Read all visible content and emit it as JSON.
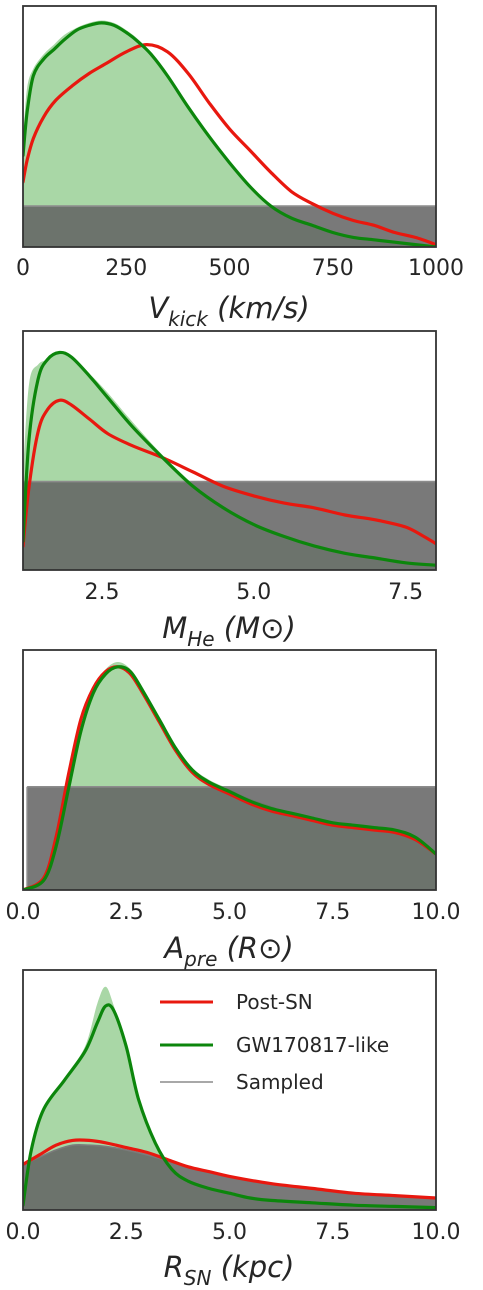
{
  "chart_data": [
    {
      "type": "area",
      "xlabel": {
        "main": "V",
        "sub": "kick",
        "rest": " (km/s)"
      },
      "xlim": [
        0,
        1000
      ],
      "xticks": [
        0,
        250,
        500,
        750,
        1000
      ],
      "ylim": [
        0,
        1.0
      ],
      "sampled_level": 0.17,
      "series": [
        {
          "name": "Post-SN",
          "color": "#e8180f",
          "x": [
            0,
            10,
            25,
            50,
            80,
            120,
            160,
            200,
            250,
            300,
            350,
            400,
            450,
            500,
            550,
            600,
            650,
            700,
            750,
            800,
            850,
            900,
            950,
            1000
          ],
          "y": [
            0.27,
            0.36,
            0.45,
            0.54,
            0.61,
            0.67,
            0.72,
            0.76,
            0.81,
            0.84,
            0.81,
            0.72,
            0.6,
            0.49,
            0.4,
            0.31,
            0.23,
            0.18,
            0.14,
            0.11,
            0.09,
            0.06,
            0.04,
            0.01
          ]
        },
        {
          "name": "GW170817-like",
          "color": "#0c860c",
          "x": [
            0,
            10,
            25,
            50,
            75,
            100,
            130,
            160,
            190,
            220,
            250,
            280,
            310,
            350,
            400,
            450,
            500,
            550,
            600,
            650,
            700,
            750,
            800,
            850,
            900,
            950,
            1000
          ],
          "y": [
            0.38,
            0.56,
            0.71,
            0.78,
            0.82,
            0.86,
            0.9,
            0.92,
            0.93,
            0.92,
            0.89,
            0.85,
            0.8,
            0.71,
            0.58,
            0.46,
            0.35,
            0.25,
            0.17,
            0.12,
            0.09,
            0.06,
            0.04,
            0.03,
            0.02,
            0.01,
            0.0
          ]
        }
      ],
      "histogram": {
        "name": "GW170817-like",
        "color": "#a9d7a6",
        "x": [
          0,
          10,
          25,
          50,
          75,
          100,
          130,
          160,
          190,
          220,
          250,
          280,
          310,
          350,
          400,
          450,
          500,
          550,
          600,
          650,
          700,
          750,
          800,
          850,
          900,
          950,
          1000
        ],
        "y": [
          0.45,
          0.66,
          0.74,
          0.8,
          0.84,
          0.88,
          0.91,
          0.93,
          0.94,
          0.93,
          0.9,
          0.86,
          0.8,
          0.71,
          0.58,
          0.46,
          0.35,
          0.25,
          0.17,
          0.12,
          0.09,
          0.06,
          0.04,
          0.03,
          0.02,
          0.01,
          0.0
        ]
      }
    },
    {
      "type": "area",
      "xlabel": {
        "main": "M",
        "sub": "He",
        "rest": " (M⊙)"
      },
      "xlim": [
        1.2,
        8.0
      ],
      "xticks": [
        2.5,
        5.0,
        7.5
      ],
      "ylim": [
        0,
        1.0
      ],
      "sampled_level": 0.37,
      "series": [
        {
          "name": "Post-SN",
          "color": "#e8180f",
          "x": [
            1.2,
            1.3,
            1.45,
            1.6,
            1.8,
            2.0,
            2.3,
            2.6,
            3.0,
            3.5,
            4.0,
            4.5,
            5.0,
            5.5,
            6.0,
            6.5,
            7.0,
            7.5,
            7.8,
            8.0
          ],
          "y": [
            0.1,
            0.35,
            0.58,
            0.67,
            0.71,
            0.69,
            0.63,
            0.57,
            0.52,
            0.47,
            0.41,
            0.35,
            0.31,
            0.28,
            0.26,
            0.23,
            0.21,
            0.18,
            0.14,
            0.11
          ]
        },
        {
          "name": "GW170817-like",
          "color": "#0c860c",
          "x": [
            1.2,
            1.3,
            1.45,
            1.6,
            1.8,
            2.0,
            2.3,
            2.6,
            3.0,
            3.5,
            4.0,
            4.5,
            5.0,
            5.5,
            6.0,
            6.5,
            7.0,
            7.5,
            8.0
          ],
          "y": [
            0.12,
            0.55,
            0.8,
            0.88,
            0.91,
            0.89,
            0.81,
            0.72,
            0.6,
            0.47,
            0.35,
            0.26,
            0.19,
            0.14,
            0.1,
            0.07,
            0.05,
            0.03,
            0.02
          ]
        }
      ],
      "histogram": {
        "name": "GW170817-like",
        "color": "#a9d7a6",
        "x": [
          1.2,
          1.3,
          1.45,
          1.6,
          1.8,
          2.0,
          2.3,
          2.6,
          3.0,
          3.5,
          4.0,
          4.5,
          5.0,
          5.5,
          6.0,
          6.5,
          7.0,
          7.5,
          8.0
        ],
        "y": [
          0.4,
          0.78,
          0.86,
          0.88,
          0.91,
          0.89,
          0.82,
          0.74,
          0.62,
          0.48,
          0.36,
          0.26,
          0.19,
          0.14,
          0.1,
          0.07,
          0.05,
          0.03,
          0.02
        ]
      }
    },
    {
      "type": "area",
      "xlabel": {
        "main": "A",
        "sub": "pre",
        "rest": " (R⊙)"
      },
      "xlim": [
        0,
        10
      ],
      "xticks": [
        0.0,
        2.5,
        5.0,
        7.5,
        10.0
      ],
      "ylim": [
        0,
        1.0
      ],
      "sampled_level": 0.43,
      "sampled_xmin": 0.1,
      "series": [
        {
          "name": "Post-SN",
          "color": "#e8180f",
          "x": [
            0,
            0.5,
            0.8,
            1.1,
            1.4,
            1.7,
            2.0,
            2.3,
            2.6,
            2.9,
            3.3,
            3.7,
            4.1,
            4.5,
            5.0,
            5.5,
            6.0,
            6.5,
            7.0,
            7.5,
            8.0,
            8.5,
            9.0,
            9.5,
            10.0
          ],
          "y": [
            0.0,
            0.05,
            0.22,
            0.48,
            0.71,
            0.84,
            0.91,
            0.93,
            0.9,
            0.82,
            0.7,
            0.58,
            0.49,
            0.44,
            0.4,
            0.36,
            0.33,
            0.31,
            0.29,
            0.27,
            0.26,
            0.25,
            0.24,
            0.21,
            0.15
          ]
        },
        {
          "name": "GW170817-like",
          "color": "#0c860c",
          "x": [
            0,
            0.5,
            0.8,
            1.1,
            1.4,
            1.7,
            2.0,
            2.3,
            2.6,
            2.9,
            3.3,
            3.7,
            4.1,
            4.5,
            5.0,
            5.5,
            6.0,
            6.5,
            7.0,
            7.5,
            8.0,
            8.5,
            9.0,
            9.5,
            10.0
          ],
          "y": [
            0.0,
            0.04,
            0.18,
            0.42,
            0.66,
            0.82,
            0.9,
            0.93,
            0.91,
            0.83,
            0.71,
            0.59,
            0.5,
            0.45,
            0.41,
            0.37,
            0.34,
            0.32,
            0.3,
            0.28,
            0.27,
            0.26,
            0.25,
            0.22,
            0.15
          ]
        }
      ],
      "histogram": {
        "name": "GW170817-like",
        "color": "#a9d7a6",
        "x": [
          0,
          0.5,
          0.8,
          1.1,
          1.4,
          1.7,
          2.0,
          2.3,
          2.6,
          2.9,
          3.3,
          3.7,
          4.1,
          4.5,
          5.0,
          5.5,
          6.0,
          6.5,
          7.0,
          7.5,
          8.0,
          8.5,
          9.0,
          9.5,
          10.0
        ],
        "y": [
          0.0,
          0.04,
          0.19,
          0.44,
          0.68,
          0.84,
          0.92,
          0.95,
          0.92,
          0.84,
          0.72,
          0.6,
          0.51,
          0.46,
          0.42,
          0.38,
          0.35,
          0.32,
          0.3,
          0.28,
          0.27,
          0.26,
          0.25,
          0.22,
          0.15
        ]
      }
    },
    {
      "type": "area",
      "xlabel": {
        "main": "R",
        "sub": "SN",
        "rest": " (kpc)"
      },
      "xlim": [
        0,
        10
      ],
      "xticks": [
        0.0,
        2.5,
        5.0,
        7.5,
        10.0
      ],
      "ylim": [
        0,
        1.0
      ],
      "legend_position": "top-right",
      "series": [
        {
          "name": "Post-SN",
          "color": "#e8180f",
          "x": [
            0,
            0.4,
            0.8,
            1.2,
            1.6,
            2.0,
            2.5,
            3.0,
            3.5,
            4.0,
            4.5,
            5.0,
            6.0,
            7.0,
            8.0,
            9.0,
            10.0
          ],
          "y": [
            0.19,
            0.23,
            0.27,
            0.29,
            0.29,
            0.28,
            0.26,
            0.24,
            0.21,
            0.18,
            0.16,
            0.14,
            0.11,
            0.09,
            0.07,
            0.06,
            0.05
          ]
        },
        {
          "name": "GW170817-like",
          "color": "#0c860c",
          "x": [
            0,
            0.2,
            0.5,
            1.0,
            1.5,
            1.8,
            2.0,
            2.2,
            2.5,
            2.8,
            3.2,
            3.6,
            4.0,
            4.5,
            5.0,
            5.5,
            6.0,
            7.0,
            8.0,
            9.0,
            10.0
          ],
          "y": [
            0.02,
            0.25,
            0.42,
            0.54,
            0.66,
            0.78,
            0.85,
            0.83,
            0.68,
            0.46,
            0.28,
            0.17,
            0.12,
            0.09,
            0.07,
            0.05,
            0.04,
            0.03,
            0.02,
            0.015,
            0.01
          ]
        },
        {
          "name": "Sampled",
          "color": "#7b7b7b",
          "x": [
            0,
            0.4,
            0.8,
            1.2,
            1.6,
            2.0,
            2.5,
            3.0,
            3.5,
            4.0,
            4.5,
            5.0,
            6.0,
            7.0,
            8.0,
            9.0,
            10.0
          ],
          "y": [
            0.19,
            0.22,
            0.25,
            0.27,
            0.27,
            0.265,
            0.25,
            0.23,
            0.205,
            0.18,
            0.16,
            0.14,
            0.11,
            0.09,
            0.07,
            0.06,
            0.045
          ]
        }
      ],
      "histogram": {
        "name": "GW170817-like",
        "color": "#a9d7a6",
        "x": [
          0,
          0.2,
          0.5,
          1.0,
          1.5,
          1.8,
          2.0,
          2.2,
          2.5,
          2.8,
          3.2,
          3.6,
          4.0,
          4.5,
          5.0,
          5.5,
          6.0,
          7.0,
          8.0,
          9.0,
          10.0
        ],
        "y": [
          0.02,
          0.25,
          0.42,
          0.55,
          0.68,
          0.86,
          0.93,
          0.85,
          0.68,
          0.46,
          0.28,
          0.17,
          0.12,
          0.09,
          0.07,
          0.05,
          0.04,
          0.03,
          0.02,
          0.015,
          0.01
        ]
      },
      "legend": [
        "Post-SN",
        "GW170817-like",
        "Sampled"
      ]
    }
  ],
  "colors": {
    "post_sn": "#e8180f",
    "gw_like": "#0c860c",
    "gw_hist": "#a9d7a6",
    "sampled_fill": "#616161",
    "sampled_line": "#8c8c8c",
    "frame": "#333333"
  }
}
